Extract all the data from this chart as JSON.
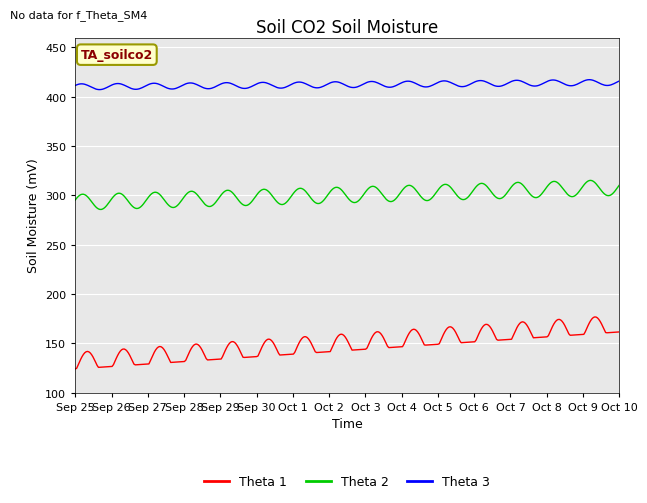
{
  "title": "Soil CO2 Soil Moisture",
  "no_data_text": "No data for f_Theta_SM4",
  "legend_box_text": "TA_soilco2",
  "xlabel": "Time",
  "ylabel": "Soil Moisture (mV)",
  "ylim": [
    100,
    460
  ],
  "yticks": [
    100,
    150,
    200,
    250,
    300,
    350,
    400,
    450
  ],
  "xtick_labels": [
    "Sep 25",
    "Sep 26",
    "Sep 27",
    "Sep 28",
    "Sep 29",
    "Sep 30",
    "Oct 1",
    "Oct 2",
    "Oct 3",
    "Oct 4",
    "Oct 5",
    "Oct 6",
    "Oct 7",
    "Oct 8",
    "Oct 9",
    "Oct 10"
  ],
  "bg_color": "#e8e8e8",
  "line_colors": {
    "theta1": "#ff0000",
    "theta2": "#00cc00",
    "theta3": "#0000ff"
  },
  "legend_labels": [
    "Theta 1",
    "Theta 2",
    "Theta 3"
  ],
  "legend_colors": [
    "#ff0000",
    "#00cc00",
    "#0000ff"
  ],
  "title_fontsize": 12,
  "axis_fontsize": 9,
  "tick_fontsize": 8,
  "legend_box_color": "#ffffcc",
  "legend_box_edge": "#999900",
  "legend_box_text_color": "#8b0000"
}
